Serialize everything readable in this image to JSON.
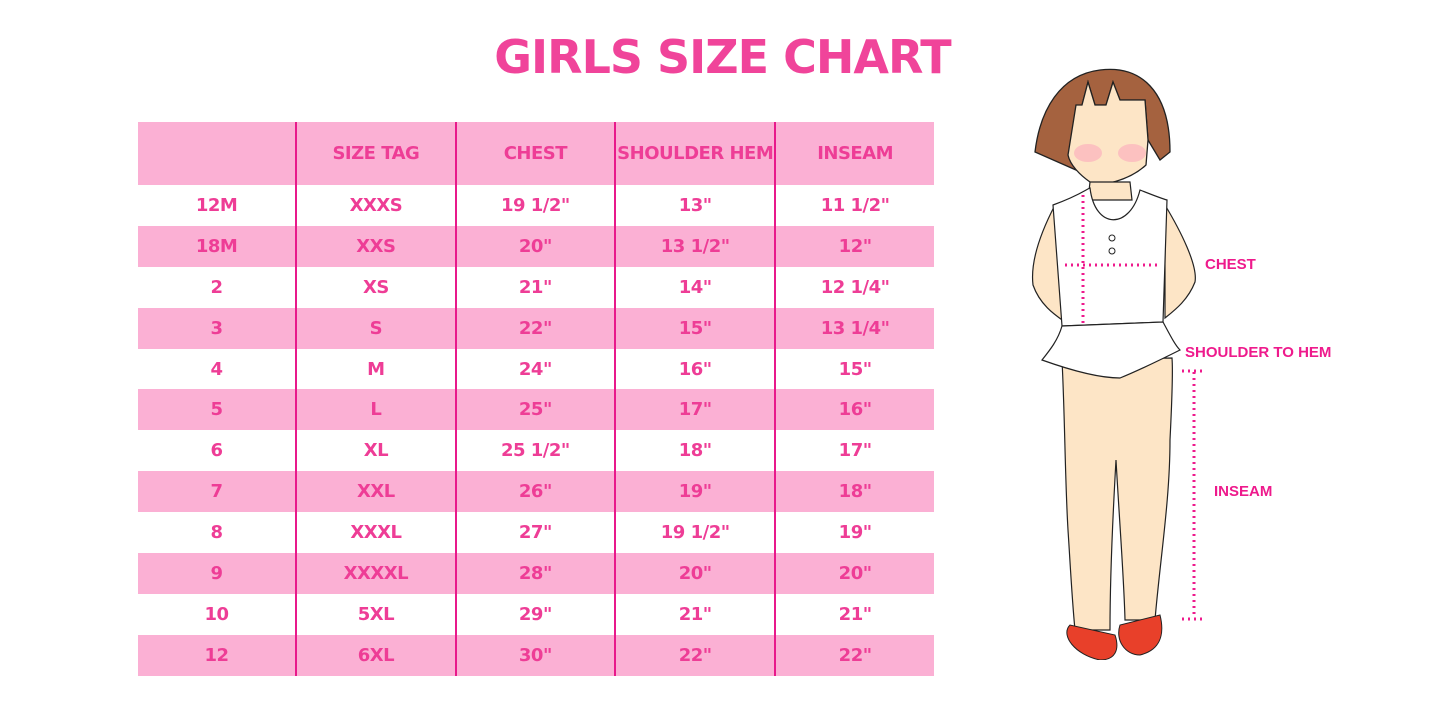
{
  "title": "GIRLS SIZE CHART",
  "table": {
    "headers": [
      "",
      "SIZE TAG",
      "CHEST",
      "SHOULDER HEM",
      "INSEAM"
    ],
    "rows": [
      [
        "12M",
        "XXXS",
        "19 1/2\"",
        "13\"",
        "11 1/2\""
      ],
      [
        "18M",
        "XXS",
        "20\"",
        "13 1/2\"",
        "12\""
      ],
      [
        "2",
        "XS",
        "21\"",
        "14\"",
        "12 1/4\""
      ],
      [
        "3",
        "S",
        "22\"",
        "15\"",
        "13 1/4\""
      ],
      [
        "4",
        "M",
        "24\"",
        "16\"",
        "15\""
      ],
      [
        "5",
        "L",
        "25\"",
        "17\"",
        "16\""
      ],
      [
        "6",
        "XL",
        "25 1/2\"",
        "18\"",
        "17\""
      ],
      [
        "7",
        "XXL",
        "26\"",
        "19\"",
        "18\""
      ],
      [
        "8",
        "XXXL",
        "27\"",
        "19 1/2\"",
        "19\""
      ],
      [
        "9",
        "XXXXL",
        "28\"",
        "20\"",
        "20\""
      ],
      [
        "10",
        "5XL",
        "29\"",
        "21\"",
        "21\""
      ],
      [
        "12",
        "6XL",
        "30\"",
        "22\"",
        "22\""
      ]
    ]
  },
  "figure": {
    "labels": {
      "chest": "CHEST",
      "shoulder_to_hem": "SHOULDER TO HEM",
      "inseam": "INSEAM"
    }
  },
  "colors": {
    "title": "#f0449a",
    "row_pink": "#fbb0d4",
    "text": "#ee3d96",
    "divider": "#e8198b",
    "measure": "#ee1a8c"
  }
}
